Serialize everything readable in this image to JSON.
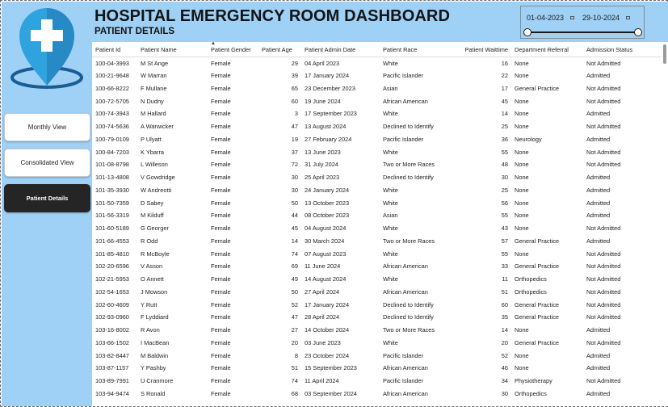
{
  "header": {
    "title": "HOSPITAL EMERGENCY ROOM DASHBOARD",
    "subtitle": "PATIENT DETAILS"
  },
  "slicer": {
    "start_date": "01-04-2023",
    "end_date": "29-10-2024",
    "range_fraction": [
      0,
      1
    ]
  },
  "nav": {
    "monthly": "Monthly View",
    "consolidated": "Consolidated View",
    "patient_details": "Patient Details"
  },
  "colors": {
    "panel_bg": "#9fd0f5",
    "logo_blue": "#2fa3dd",
    "logo_dark": "#1a5c96",
    "active_button": "#252525"
  },
  "icons": {
    "logo": "map-pin-medical-cross-icon",
    "date": "calendar-icon"
  },
  "table": {
    "columns": [
      "Patient Id",
      "Patient Name",
      "Patient Gender",
      "Patient Age",
      "Patient Admin Date",
      "Patient Race",
      "Patient Waittime",
      "Department Referral",
      "Admission Status"
    ],
    "sorted_column": "Patient Gender",
    "rows": [
      [
        "100-04-3993",
        "M St Ange",
        "Female",
        "29",
        "04 April 2023",
        "White",
        "16",
        "None",
        "Not Admitted"
      ],
      [
        "100-21-9648",
        "W Marran",
        "Female",
        "39",
        "17 January 2024",
        "Pacific Islander",
        "22",
        "None",
        "Admitted"
      ],
      [
        "100-66-8222",
        "F Mullane",
        "Female",
        "65",
        "23 December 2023",
        "Asian",
        "17",
        "General Practice",
        "Not Admitted"
      ],
      [
        "100-72-5705",
        "N Dudny",
        "Female",
        "60",
        "19 June 2024",
        "African American",
        "45",
        "None",
        "Not Admitted"
      ],
      [
        "100-74-3943",
        "M Hallard",
        "Female",
        "3",
        "17 September 2023",
        "White",
        "14",
        "None",
        "Admitted"
      ],
      [
        "100-74-5636",
        "A Warwicker",
        "Female",
        "47",
        "13 August 2024",
        "Declined to Identify",
        "25",
        "None",
        "Not Admitted"
      ],
      [
        "100-79-0109",
        "P Ulyatt",
        "Female",
        "19",
        "27 February 2024",
        "Pacific Islander",
        "36",
        "Neurology",
        "Admitted"
      ],
      [
        "100-84-7203",
        "K Ybarra",
        "Female",
        "37",
        "13 June 2023",
        "White",
        "55",
        "None",
        "Not Admitted"
      ],
      [
        "101-08-8798",
        "L Willeson",
        "Female",
        "72",
        "31 July 2024",
        "Two or More Races",
        "48",
        "None",
        "Not Admitted"
      ],
      [
        "101-13-4808",
        "V Gowdridge",
        "Female",
        "30",
        "25 April 2023",
        "Declined to Identify",
        "30",
        "None",
        "Admitted"
      ],
      [
        "101-35-3930",
        "W Andreotti",
        "Female",
        "30",
        "24 January 2024",
        "White",
        "25",
        "None",
        "Admitted"
      ],
      [
        "101-50-7359",
        "D Sabey",
        "Female",
        "50",
        "13 October 2023",
        "White",
        "56",
        "None",
        "Admitted"
      ],
      [
        "101-56-3319",
        "M Kilduff",
        "Female",
        "44",
        "08 October 2023",
        "Asian",
        "55",
        "None",
        "Admitted"
      ],
      [
        "101-60-5189",
        "G Georger",
        "Female",
        "45",
        "04 August 2024",
        "White",
        "43",
        "None",
        "Not Admitted"
      ],
      [
        "101-66-4553",
        "R Odd",
        "Female",
        "14",
        "30 March 2024",
        "Two or More Races",
        "57",
        "General Practice",
        "Admitted"
      ],
      [
        "101-85-4810",
        "R McBoyle",
        "Female",
        "74",
        "07 August 2023",
        "White",
        "55",
        "None",
        "Not Admitted"
      ],
      [
        "102-20-6596",
        "V Asson",
        "Female",
        "69",
        "11 June 2024",
        "African American",
        "33",
        "General Practice",
        "Not Admitted"
      ],
      [
        "102-21-5953",
        "O Annett",
        "Female",
        "49",
        "14 August 2024",
        "White",
        "11",
        "Orthopedics",
        "Not Admitted"
      ],
      [
        "102-54-1653",
        "J Mowson",
        "Female",
        "50",
        "27 April 2024",
        "African American",
        "51",
        "Orthopedics",
        "Not Admitted"
      ],
      [
        "102-60-4609",
        "Y Rutt",
        "Female",
        "52",
        "17 January 2024",
        "Declined to Identify",
        "60",
        "General Practice",
        "Not Admitted"
      ],
      [
        "102-93-0960",
        "F Lyddiard",
        "Female",
        "47",
        "28 April 2024",
        "Declined to Identify",
        "35",
        "General Practice",
        "Not Admitted"
      ],
      [
        "103-16-8002",
        "R Avon",
        "Female",
        "27",
        "14 October 2024",
        "Two or More Races",
        "14",
        "None",
        "Admitted"
      ],
      [
        "103-66-1502",
        "I MacBean",
        "Female",
        "20",
        "03 June 2023",
        "White",
        "20",
        "General Practice",
        "Not Admitted"
      ],
      [
        "103-82-8447",
        "M Baldwin",
        "Female",
        "8",
        "23 October 2024",
        "Pacific Islander",
        "52",
        "None",
        "Admitted"
      ],
      [
        "103-87-1157",
        "Y Pashby",
        "Female",
        "51",
        "15 September 2023",
        "African American",
        "46",
        "None",
        "Admitted"
      ],
      [
        "103-89-7991",
        "U Cranmore",
        "Female",
        "74",
        "11 April 2024",
        "Pacific Islander",
        "34",
        "Physiotherapy",
        "Not Admitted"
      ],
      [
        "103-94-9474",
        "S Ronald",
        "Female",
        "68",
        "03 September 2024",
        "African American",
        "30",
        "Orthopedics",
        "Admitted"
      ]
    ]
  }
}
